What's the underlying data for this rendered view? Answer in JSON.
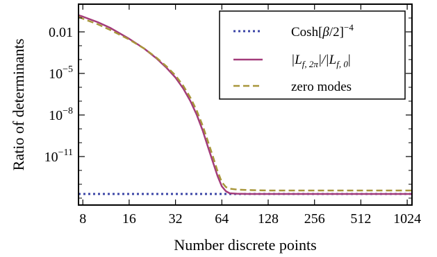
{
  "chart_data": {
    "type": "line",
    "xlabel": "Number discrete points",
    "ylabel": "Ratio of determinants",
    "x_scale": "log2",
    "y_scale": "log10",
    "xlim": [
      7.5,
      1100
    ],
    "ylim_log10": [
      -14.5,
      -0.0
    ],
    "grid": false,
    "legend_position": "top-right",
    "x_ticks": [
      {
        "value": 8,
        "label": "8"
      },
      {
        "value": 16,
        "label": "16"
      },
      {
        "value": 32,
        "label": "32"
      },
      {
        "value": 64,
        "label": "64"
      },
      {
        "value": 128,
        "label": "128"
      },
      {
        "value": 256,
        "label": "256"
      },
      {
        "value": 512,
        "label": "512"
      },
      {
        "value": 1024,
        "label": "1024"
      }
    ],
    "y_ticks": [
      {
        "log10": -2,
        "label": "0.01",
        "base": "",
        "exp": ""
      },
      {
        "log10": -5,
        "label": "",
        "base": "10",
        "exp": "−5"
      },
      {
        "log10": -8,
        "label": "",
        "base": "10",
        "exp": "−8"
      },
      {
        "log10": -11,
        "label": "",
        "base": "10",
        "exp": "−11"
      }
    ],
    "series": [
      {
        "name": "Cosh[β/2]⁻⁴",
        "legend_main": "Cosh[",
        "legend_beta": "β",
        "legend_tail": "/2]",
        "legend_sup": "−4",
        "color": "#3b45a6",
        "dash": "dotted",
        "x": [
          7.5,
          1100
        ],
        "y_log10": [
          -13.7,
          -13.7
        ]
      },
      {
        "name": "|L_f,2π|/|L_f,0|",
        "legend_l1": "|L",
        "legend_s1": "f, 2π",
        "legend_mid": "|/|L",
        "legend_s2": "f, 0",
        "legend_end": "|",
        "color": "#a33b7a",
        "dash": "solid",
        "x": [
          7.5,
          8,
          10,
          12,
          16,
          20,
          24,
          28,
          32,
          36,
          40,
          44,
          48,
          52,
          56,
          60,
          64,
          68,
          72,
          80,
          96,
          128,
          256,
          512,
          1024,
          1100
        ],
        "y_log10": [
          -0.8,
          -0.9,
          -1.3,
          -1.7,
          -2.5,
          -3.2,
          -3.9,
          -4.6,
          -5.3,
          -6.1,
          -7.0,
          -8.0,
          -9.1,
          -10.3,
          -11.4,
          -12.4,
          -13.15,
          -13.5,
          -13.65,
          -13.68,
          -13.7,
          -13.7,
          -13.7,
          -13.7,
          -13.7,
          -13.7
        ]
      },
      {
        "name": "zero modes",
        "legend_text": "zero modes",
        "color": "#a8963a",
        "dash": "dashed",
        "x": [
          7.5,
          8,
          10,
          12,
          16,
          20,
          24,
          28,
          32,
          36,
          40,
          44,
          48,
          52,
          56,
          60,
          64,
          68,
          72,
          80,
          96,
          128,
          256,
          512,
          1024,
          1100
        ],
        "y_log10": [
          -0.9,
          -1.05,
          -1.45,
          -1.85,
          -2.55,
          -3.2,
          -3.85,
          -4.5,
          -5.15,
          -5.9,
          -6.75,
          -7.7,
          -8.75,
          -9.9,
          -11.0,
          -12.05,
          -12.85,
          -13.2,
          -13.32,
          -13.38,
          -13.42,
          -13.45,
          -13.45,
          -13.45,
          -13.45,
          -13.45
        ]
      }
    ]
  }
}
